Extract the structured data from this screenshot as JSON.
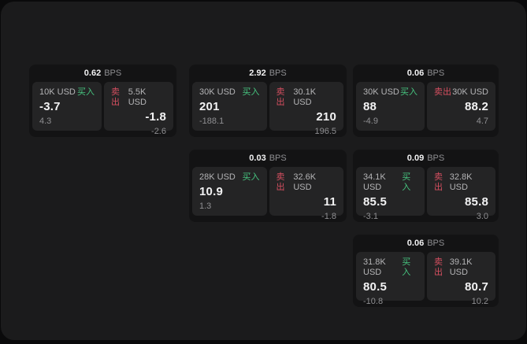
{
  "labels": {
    "bps_unit": "BPS",
    "buy": "买入",
    "sell": "卖出"
  },
  "colors": {
    "buy_green": "#46c47f",
    "sell_red": "#d54f60",
    "panel_bg": "#1b1b1c",
    "card_bg": "#131314",
    "pane_bg": "#242425"
  },
  "cards": [
    {
      "bps": "0.62",
      "buy": {
        "size": "10K USD",
        "price": "-3.7",
        "secondary": "4.3"
      },
      "sell": {
        "size": "5.5K USD",
        "price": "-1.8",
        "secondary": "-2.6"
      }
    },
    {
      "bps": "2.92",
      "buy": {
        "size": "30K USD",
        "price": "201",
        "secondary": "-188.1"
      },
      "sell": {
        "size": "30.1K USD",
        "price": "210",
        "secondary": "196.5"
      }
    },
    {
      "bps": "0.06",
      "buy": {
        "size": "30K USD",
        "price": "88",
        "secondary": "-4.9"
      },
      "sell": {
        "size": "30K USD",
        "price": "88.2",
        "secondary": "4.7"
      }
    },
    {
      "bps": "0.03",
      "buy": {
        "size": "28K USD",
        "price": "10.9",
        "secondary": "1.3"
      },
      "sell": {
        "size": "32.6K USD",
        "price": "11",
        "secondary": "-1.8"
      }
    },
    {
      "bps": "0.09",
      "buy": {
        "size": "34.1K USD",
        "price": "85.5",
        "secondary": "-3.1"
      },
      "sell": {
        "size": "32.8K USD",
        "price": "85.8",
        "secondary": "3.0"
      }
    },
    {
      "bps": "0.06",
      "buy": {
        "size": "31.8K USD",
        "price": "80.5",
        "secondary": "-10.8"
      },
      "sell": {
        "size": "39.1K USD",
        "price": "80.7",
        "secondary": "10.2"
      }
    }
  ]
}
